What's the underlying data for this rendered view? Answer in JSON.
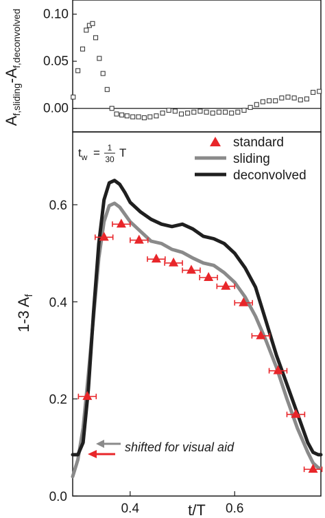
{
  "chart_data": [
    {
      "type": "scatter",
      "ylabel": "A_{f,sliding} - A_{f,deconvolved}",
      "ylabel_main": "A",
      "ylabel_sub1": "f,sliding",
      "ylabel_mid": "-A",
      "ylabel_sub2": "f,deconvolved",
      "xlim": [
        0.29,
        0.765
      ],
      "ylim": [
        -0.025,
        0.115
      ],
      "yticks": [
        0.0,
        0.05,
        0.1
      ],
      "ytick_labels": [
        "0.00",
        "0.05",
        "0.10"
      ],
      "reference_line_y": 0,
      "marker": "open-square",
      "series": [
        {
          "x": [
            0.291,
            0.3,
            0.309,
            0.316,
            0.322,
            0.328,
            0.334,
            0.341,
            0.348,
            0.356,
            0.365,
            0.374,
            0.384,
            0.394,
            0.405,
            0.416,
            0.427,
            0.438,
            0.45,
            0.462,
            0.474,
            0.486,
            0.498,
            0.51,
            0.522,
            0.534,
            0.546,
            0.558,
            0.57,
            0.582,
            0.594,
            0.606,
            0.618,
            0.63,
            0.642,
            0.654,
            0.666,
            0.678,
            0.69,
            0.702,
            0.714,
            0.726,
            0.738,
            0.75,
            0.762
          ],
          "y": [
            0.012,
            0.04,
            0.063,
            0.083,
            0.088,
            0.09,
            0.075,
            0.053,
            0.037,
            0.02,
            0.0,
            -0.006,
            -0.007,
            -0.008,
            -0.009,
            -0.009,
            -0.01,
            -0.009,
            -0.008,
            -0.005,
            -0.002,
            -0.003,
            -0.006,
            -0.005,
            -0.004,
            -0.003,
            -0.004,
            -0.005,
            -0.004,
            -0.004,
            -0.005,
            -0.004,
            -0.002,
            0.001,
            0.004,
            0.007,
            0.008,
            0.008,
            0.011,
            0.012,
            0.011,
            0.009,
            0.01,
            0.017,
            0.018
          ]
        }
      ]
    },
    {
      "type": "line",
      "xlabel": "t/T",
      "ylabel": "1-3 A_f",
      "ylabel_main": "1-3 A",
      "ylabel_sub": "f",
      "xlim": [
        0.29,
        0.765
      ],
      "ylim": [
        0.0,
        0.75
      ],
      "xticks": [
        0.4,
        0.6
      ],
      "xtick_labels": [
        "0.4",
        "0.6"
      ],
      "yticks": [
        0.0,
        0.2,
        0.4,
        0.6
      ],
      "ytick_labels": [
        "0.0",
        "0.2",
        "0.4",
        "0.6"
      ],
      "legend_position": "top-right",
      "tw_label": {
        "prefix": "t",
        "sub": "w",
        "eq": "=",
        "num": "1",
        "den": "30",
        "suffix": "T"
      },
      "annotation": "shifted for visual aid",
      "series": [
        {
          "name": "standard",
          "color": "#e8262a",
          "marker": "triangle",
          "x": [
            0.318,
            0.35,
            0.383,
            0.417,
            0.45,
            0.483,
            0.517,
            0.55,
            0.583,
            0.617,
            0.65,
            0.683,
            0.717,
            0.75
          ],
          "y": [
            0.205,
            0.533,
            0.56,
            0.527,
            0.488,
            0.48,
            0.465,
            0.45,
            0.432,
            0.398,
            0.33,
            0.258,
            0.168,
            0.055
          ],
          "xerr": 0.017
        },
        {
          "name": "sliding",
          "color": "#8a8a8a",
          "x": [
            0.29,
            0.3,
            0.31,
            0.32,
            0.33,
            0.34,
            0.35,
            0.36,
            0.37,
            0.38,
            0.39,
            0.4,
            0.42,
            0.44,
            0.46,
            0.48,
            0.5,
            0.52,
            0.54,
            0.56,
            0.58,
            0.6,
            0.62,
            0.64,
            0.66,
            0.68,
            0.7,
            0.72,
            0.74,
            0.75,
            0.76,
            0.765
          ],
          "y": [
            0.04,
            0.075,
            0.14,
            0.25,
            0.37,
            0.49,
            0.565,
            0.598,
            0.603,
            0.595,
            0.58,
            0.565,
            0.545,
            0.525,
            0.52,
            0.508,
            0.502,
            0.49,
            0.48,
            0.475,
            0.46,
            0.44,
            0.41,
            0.37,
            0.32,
            0.265,
            0.2,
            0.14,
            0.09,
            0.068,
            0.058,
            0.057
          ]
        },
        {
          "name": "deconvolved",
          "color": "#1f1f1f",
          "x": [
            0.29,
            0.3,
            0.31,
            0.32,
            0.33,
            0.34,
            0.35,
            0.36,
            0.37,
            0.38,
            0.39,
            0.4,
            0.42,
            0.44,
            0.46,
            0.48,
            0.5,
            0.52,
            0.54,
            0.56,
            0.58,
            0.6,
            0.62,
            0.64,
            0.66,
            0.68,
            0.7,
            0.72,
            0.74,
            0.75,
            0.76,
            0.765
          ],
          "y": [
            0.085,
            0.085,
            0.11,
            0.22,
            0.38,
            0.52,
            0.61,
            0.645,
            0.65,
            0.642,
            0.625,
            0.605,
            0.585,
            0.57,
            0.56,
            0.555,
            0.56,
            0.55,
            0.535,
            0.53,
            0.52,
            0.5,
            0.47,
            0.43,
            0.36,
            0.29,
            0.23,
            0.17,
            0.11,
            0.09,
            0.085,
            0.085
          ]
        }
      ],
      "markers_shift": [
        {
          "color": "#8a8a8a"
        },
        {
          "color": "#e8262a"
        }
      ]
    }
  ]
}
